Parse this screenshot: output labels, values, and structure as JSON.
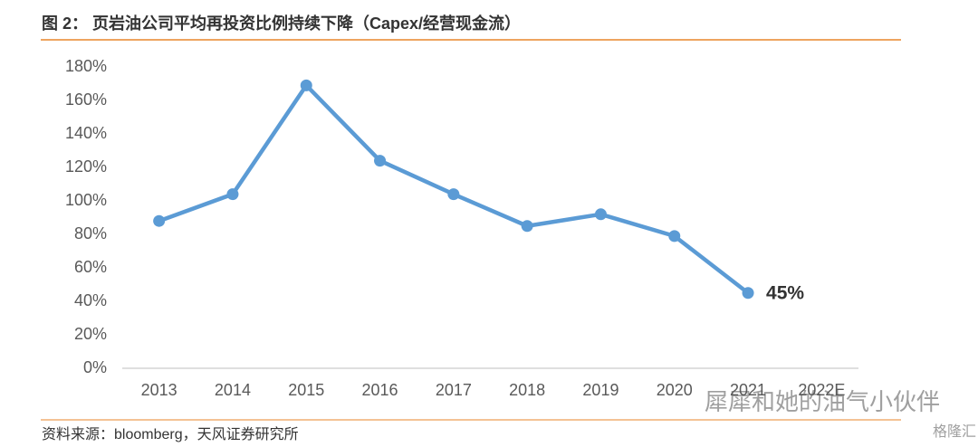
{
  "chart_data": {
    "type": "line",
    "title": "图 2：  页岩油公司平均再投资比例持续下降（Capex/经营现金流）",
    "source": "资料来源：bloomberg，天风证券研究所",
    "watermark": [
      "犀犀和她的油气小伙伴",
      "格隆汇"
    ],
    "categories": [
      "2013",
      "2014",
      "2015",
      "2016",
      "2017",
      "2018",
      "2019",
      "2020",
      "2021",
      "2022E"
    ],
    "series": [
      {
        "name": "Capex/经营现金流",
        "color": "#5b9bd5",
        "values": [
          88,
          104,
          169,
          124,
          104,
          85,
          92,
          79,
          45,
          null
        ],
        "value_labels": [
          null,
          null,
          null,
          null,
          null,
          null,
          null,
          null,
          "45%",
          null
        ]
      }
    ],
    "ylim": [
      0,
      180
    ],
    "yticks": [
      {
        "value": 0,
        "label": "0%"
      },
      {
        "value": 20,
        "label": "20%"
      },
      {
        "value": 40,
        "label": "40%"
      },
      {
        "value": 60,
        "label": "60%"
      },
      {
        "value": 80,
        "label": "80%"
      },
      {
        "value": 100,
        "label": "100%"
      },
      {
        "value": 120,
        "label": "120%"
      },
      {
        "value": 140,
        "label": "140%"
      },
      {
        "value": 160,
        "label": "160%"
      },
      {
        "value": 180,
        "label": "180%"
      }
    ],
    "grid": false
  }
}
